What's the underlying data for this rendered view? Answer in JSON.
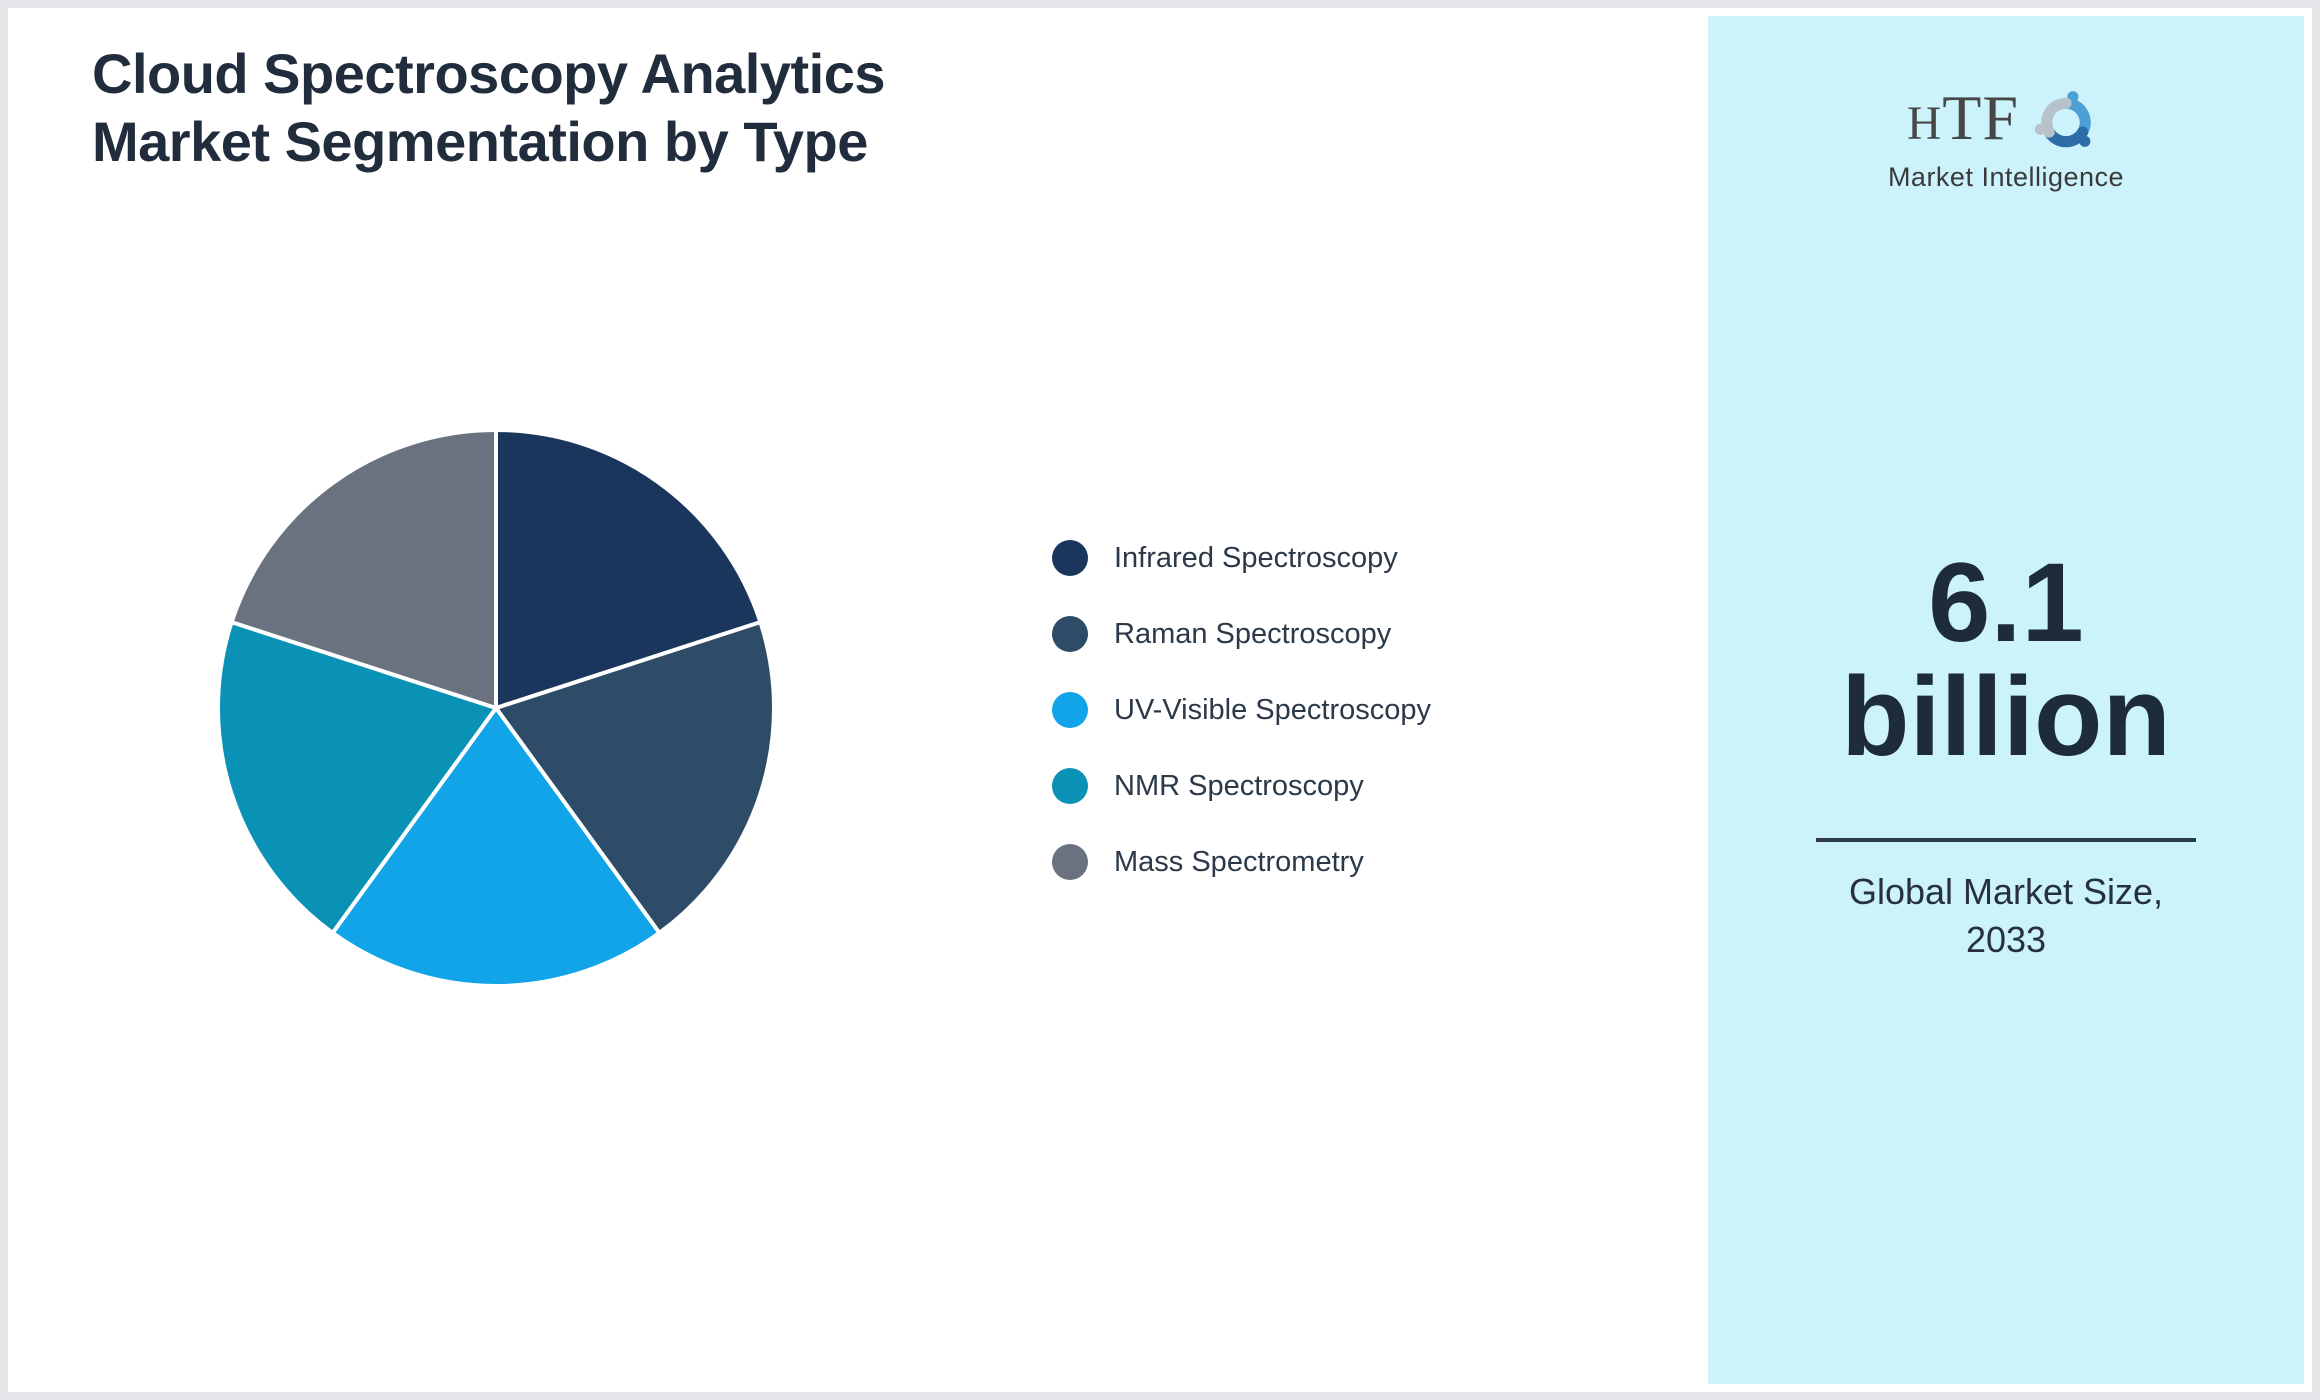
{
  "header": {
    "title_line1": "Cloud Spectroscopy Analytics",
    "title_line2": "Market Segmentation by Type"
  },
  "chart_data": {
    "type": "pie",
    "title": "Cloud Spectroscopy Analytics Market Segmentation by Type",
    "legend_position": "right",
    "start_angle_deg": 0,
    "direction": "clockwise",
    "values_unit": "percent",
    "segments": [
      {
        "label": "Infrared Spectroscopy",
        "value": 20,
        "color": "#1b365d"
      },
      {
        "label": "Raman Spectroscopy",
        "value": 20,
        "color": "#2e4b68"
      },
      {
        "label": "UV-Visible Spectroscopy",
        "value": 20,
        "color": "#11a4e9"
      },
      {
        "label": "NMR Spectroscopy",
        "value": 20,
        "color": "#0992b5"
      },
      {
        "label": "Mass Spectrometry",
        "value": 20,
        "color": "#6a7280"
      }
    ]
  },
  "sidebar": {
    "logo": {
      "text": "HTF",
      "subtext": "Market Intelligence",
      "icon": "swirl-figures-icon",
      "icon_colors": [
        "#4da0d6",
        "#2d6ca6",
        "#b8c2ca"
      ]
    },
    "market_size": {
      "value_line1": "6.1",
      "value_line2": "billion",
      "caption_line1": "Global Market Size,",
      "caption_line2": "2033"
    }
  },
  "colors": {
    "panel_bg": "#ccf3fb",
    "frame_border": "#e7e6eb",
    "title_text": "#212d3d",
    "legend_text": "#2b3948",
    "value_text": "#1e2b3c",
    "divider": "#2c3a4b"
  }
}
